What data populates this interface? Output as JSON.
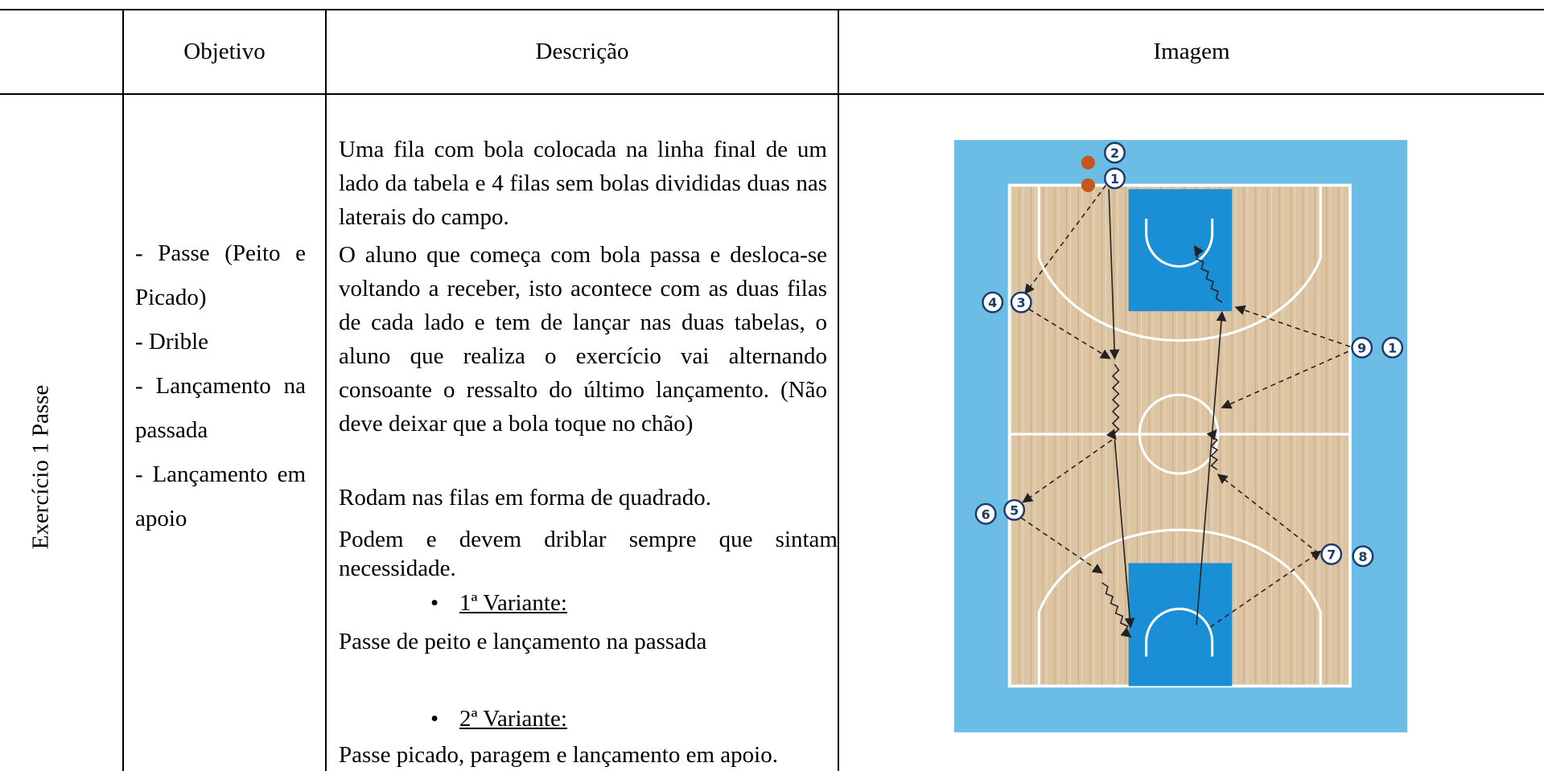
{
  "header": {
    "objetivo": "Objetivo",
    "descricao": "Descrição",
    "imagem": "Imagem"
  },
  "row": {
    "label": "Exercício 1 Passe",
    "objetivos": [
      "- Passe (Peito e Picado)",
      "- Drible",
      "- Lançamento na passada",
      "- Lançamento em apoio"
    ],
    "descricao": [
      "Uma fila com bola colocada na linha final de um lado da tabela e 4 filas sem bolas divididas duas nas laterais do campo.",
      "O aluno que começa com bola passa e desloca-se voltando a receber, isto acontece com as duas filas de cada lado  e tem de lançar nas duas tabelas, o aluno  que realiza o exercício vai alternando consoante o ressalto do último lançamento. (Não deve deixar que a bola toque no chão)",
      "Rodam nas filas em forma de quadrado.",
      "Podem e devem driblar sempre que sintam necessidade."
    ],
    "variantes": [
      {
        "title": "1ª Variante:",
        "text": "Passe de peito e lançamento na passada"
      },
      {
        "title": "2ª Variante:",
        "text": "Passe picado, paragem e lançamento em apoio."
      }
    ],
    "diagram": {
      "markers": [
        "2",
        "1",
        "4",
        "3",
        "9",
        "1",
        "6",
        "5",
        "7",
        "8"
      ]
    }
  }
}
